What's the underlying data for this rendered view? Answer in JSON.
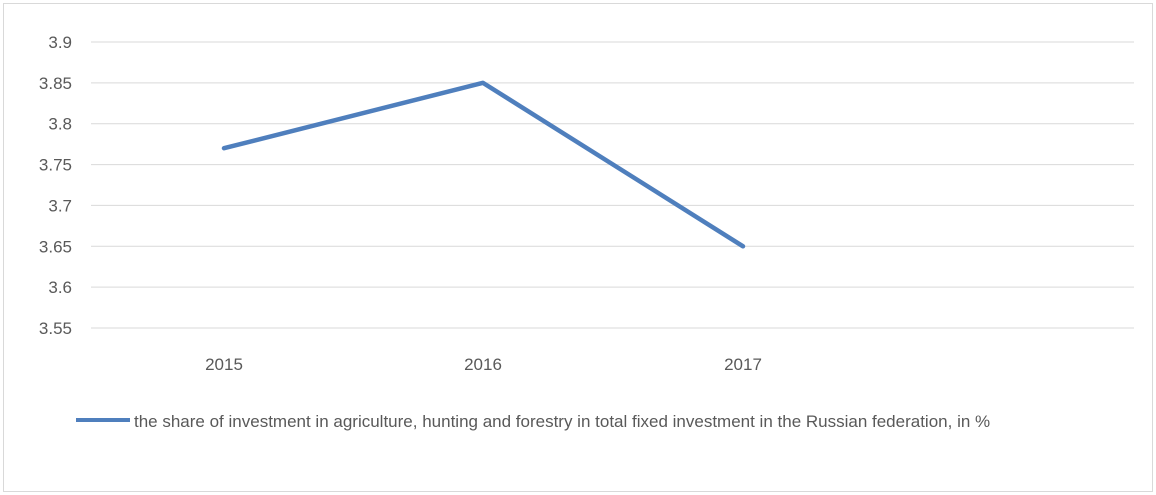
{
  "chart_data": {
    "type": "line",
    "categories": [
      "2015",
      "2016",
      "2017"
    ],
    "series": [
      {
        "name": "the share of investment in agriculture, hunting and forestry in total fixed investment in the Russian federation, in %",
        "values": [
          3.77,
          3.85,
          3.65
        ],
        "color": "#4f7fbd"
      }
    ],
    "ylim": [
      3.55,
      3.9
    ],
    "yticks": [
      "3.9",
      "3.85",
      "3.8",
      "3.75",
      "3.7",
      "3.65",
      "3.6",
      "3.55"
    ],
    "grid": true,
    "legend_position": "bottom",
    "title": "",
    "xlabel": "",
    "ylabel": ""
  }
}
